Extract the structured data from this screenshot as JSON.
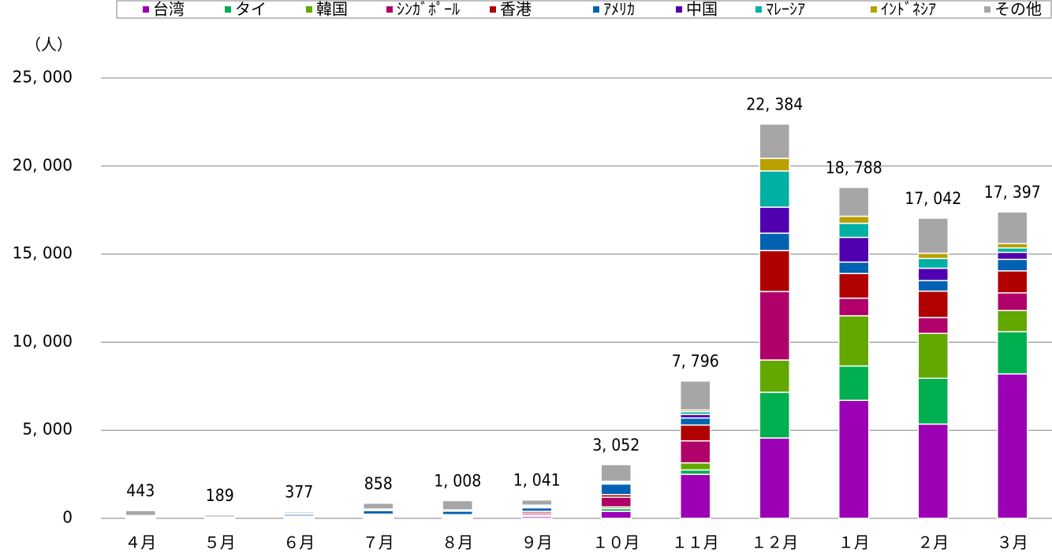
{
  "chart_data": {
    "type": "stacked_bar",
    "y_unit_label": "（人）",
    "categories": [
      "４月",
      "５月",
      "６月",
      "７月",
      "８月",
      "９月",
      "１０月",
      "１１月",
      "１２月",
      "１月",
      "２月",
      "３月"
    ],
    "series": [
      {
        "name": "台湾",
        "color": "#9c00b4",
        "values": [
          20,
          10,
          30,
          60,
          50,
          100,
          400,
          2500,
          4562,
          6700,
          5350,
          8200
        ]
      },
      {
        "name": "タイ",
        "color": "#00b050",
        "values": [
          10,
          5,
          20,
          30,
          30,
          50,
          150,
          250,
          2594,
          1950,
          2600,
          2400
        ]
      },
      {
        "name": "韓国",
        "color": "#62a800",
        "values": [
          10,
          5,
          20,
          30,
          30,
          50,
          100,
          400,
          1833,
          2850,
          2550,
          1200
        ]
      },
      {
        "name": "ｼﾝｶﾞﾎﾟｰﾙ",
        "color": "#b0006a",
        "values": [
          20,
          10,
          30,
          60,
          50,
          100,
          550,
          1250,
          3891,
          1000,
          900,
          1000
        ]
      },
      {
        "name": "香港",
        "color": "#b00000",
        "values": [
          20,
          10,
          30,
          60,
          50,
          100,
          150,
          900,
          2326,
          1400,
          1500,
          1250
        ]
      },
      {
        "name": "ｱﾒﾘｶ",
        "color": "#0062b0",
        "values": [
          50,
          20,
          100,
          200,
          200,
          200,
          600,
          400,
          984,
          650,
          600,
          650
        ]
      },
      {
        "name": "中国",
        "color": "#5000b0",
        "values": [
          10,
          5,
          20,
          30,
          20,
          50,
          50,
          200,
          1476,
          1400,
          700,
          400
        ]
      },
      {
        "name": "ﾏﾚｰｼｱ",
        "color": "#00b0a4",
        "values": [
          10,
          5,
          20,
          30,
          30,
          50,
          50,
          150,
          2057,
          800,
          550,
          250
        ]
      },
      {
        "name": "ｲﾝﾄﾞﾈｼｱ",
        "color": "#b8a000",
        "values": [
          10,
          5,
          20,
          30,
          20,
          50,
          50,
          100,
          715,
          400,
          300,
          250
        ]
      },
      {
        "name": "その他",
        "color": "#a6a6a6",
        "values": [
          283,
          114,
          87,
          328,
          528,
          291,
          952,
          1646,
          1946,
          1638,
          1992,
          1797
        ]
      }
    ],
    "totals": {
      "values": [
        443,
        189,
        377,
        858,
        1008,
        1041,
        3052,
        7796,
        22384,
        18788,
        17042,
        17397
      ],
      "value_labels": [
        "443",
        "189",
        "377",
        "858",
        "1, 008",
        "1, 041",
        "3, 052",
        "7, 796",
        "22, 384",
        "18, 788",
        "17, 042",
        "17, 397"
      ]
    },
    "ylim": [
      0,
      25000
    ],
    "yticks": [
      0,
      {
        "value": 5000,
        "label": "5, 000"
      },
      {
        "value": 10000,
        "label": "10, 000"
      },
      {
        "value": 15000,
        "label": "15, 000"
      },
      {
        "value": 20000,
        "label": "20, 000"
      },
      {
        "value": 25000,
        "label": "25, 000"
      }
    ],
    "grid": true,
    "legend": "top"
  }
}
